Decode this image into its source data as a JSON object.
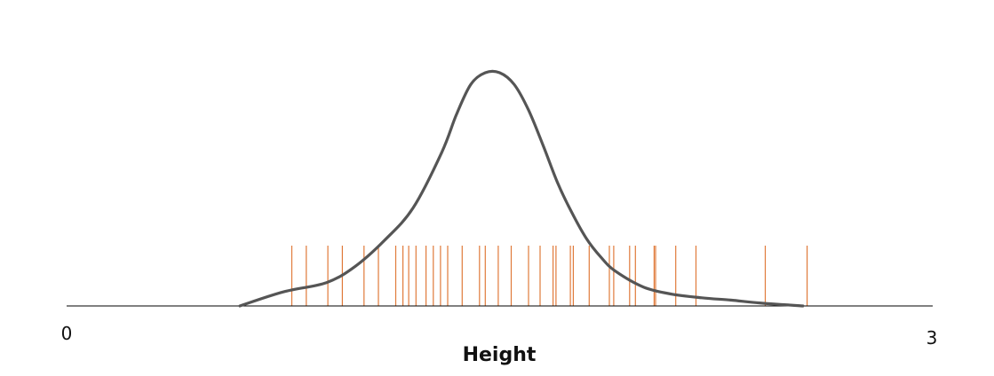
{
  "chart_data": {
    "type": "density",
    "xlabel": "Height",
    "xlim": [
      0,
      3
    ],
    "x_ticks": [
      "0",
      "3"
    ],
    "grid": false,
    "legend": "none",
    "density_curve": {
      "color": "#555555",
      "x": [
        0.6,
        0.75,
        0.9,
        1.0,
        1.1,
        1.2,
        1.3,
        1.35,
        1.4,
        1.45,
        1.5,
        1.55,
        1.6,
        1.65,
        1.7,
        1.75,
        1.8,
        1.85,
        1.9,
        2.0,
        2.1,
        2.2,
        2.3,
        2.4,
        2.5,
        2.55
      ],
      "y": [
        0.0,
        0.06,
        0.1,
        0.17,
        0.28,
        0.42,
        0.66,
        0.82,
        0.95,
        1.0,
        1.0,
        0.95,
        0.84,
        0.69,
        0.53,
        0.4,
        0.29,
        0.21,
        0.15,
        0.08,
        0.05,
        0.035,
        0.025,
        0.013,
        0.004,
        0.0
      ]
    },
    "rug": {
      "color": "#e07a3a",
      "values": [
        0.78,
        0.83,
        0.905,
        0.955,
        1.03,
        1.08,
        1.14,
        1.165,
        1.185,
        1.21,
        1.245,
        1.27,
        1.295,
        1.32,
        1.37,
        1.43,
        1.45,
        1.495,
        1.54,
        1.6,
        1.64,
        1.685,
        1.695,
        1.745,
        1.755,
        1.81,
        1.88,
        1.895,
        1.95,
        1.97,
        2.035,
        2.04,
        2.11,
        2.18,
        2.42,
        2.565
      ]
    }
  }
}
